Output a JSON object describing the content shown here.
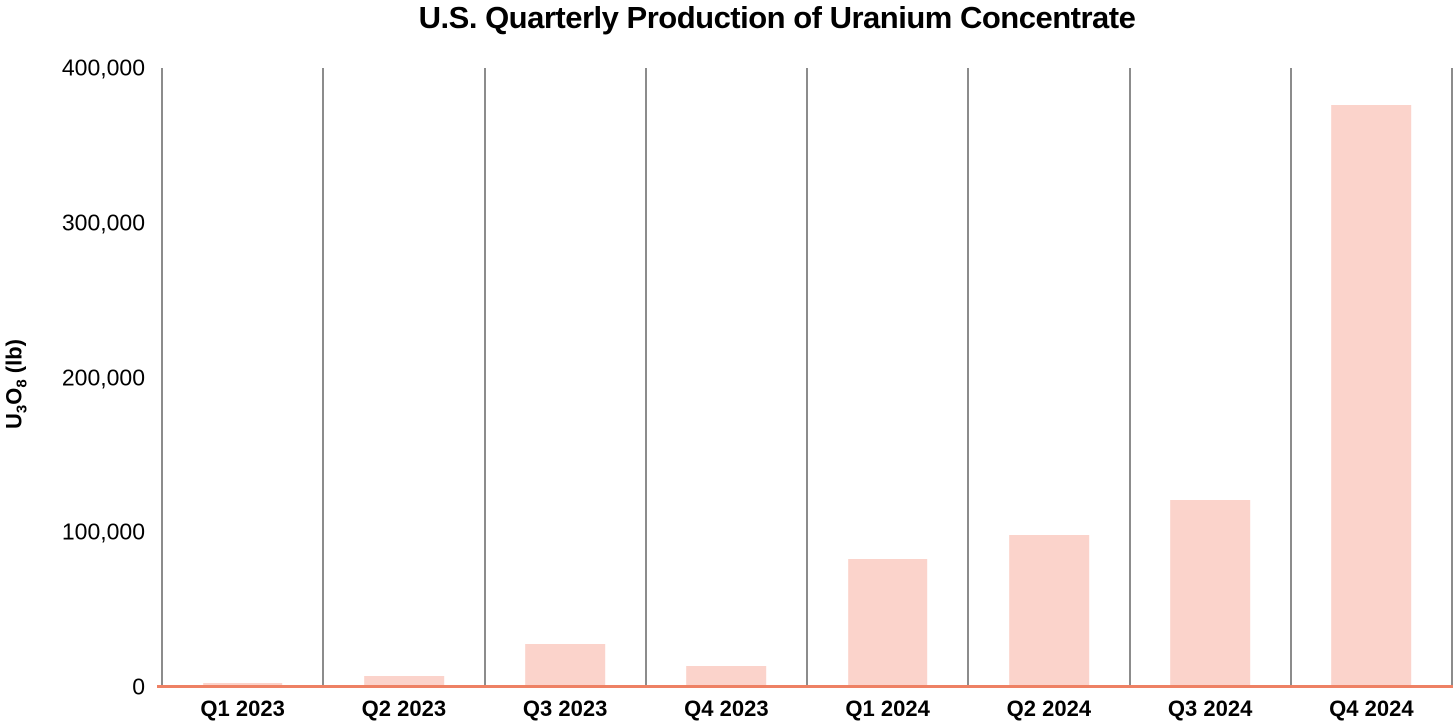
{
  "title": "U.S. Quarterly Production of Uranium Concentrate",
  "y_axis": {
    "label_parts": {
      "u": "U",
      "sub3": "3",
      "o": "O",
      "sub8": "8",
      "unit": " (lb)"
    },
    "tick_labels": [
      "400,000",
      "300,000",
      "200,000",
      "100,000",
      "0"
    ],
    "tick_values": [
      400000,
      300000,
      200000,
      100000,
      0
    ]
  },
  "chart_data": {
    "type": "bar",
    "title": "U.S. Quarterly Production of Uranium Concentrate",
    "xlabel": "",
    "ylabel": "U3O8 (lb)",
    "categories": [
      "Q1 2023",
      "Q2 2023",
      "Q3 2023",
      "Q4 2023",
      "Q1 2024",
      "Q2 2024",
      "Q3 2024",
      "Q4 2024"
    ],
    "values": [
      2500,
      7000,
      28000,
      13500,
      82500,
      98000,
      121000,
      376000
    ],
    "ylim": [
      0,
      400000
    ],
    "yticks": [
      0,
      100000,
      200000,
      300000,
      400000
    ],
    "grid": "vertical category separator lines only",
    "legend": false,
    "colors": {
      "bar": "#fbd3cb",
      "baseline": "#ee8164",
      "gridline": "#8c8c8c",
      "text": "#000000"
    }
  }
}
